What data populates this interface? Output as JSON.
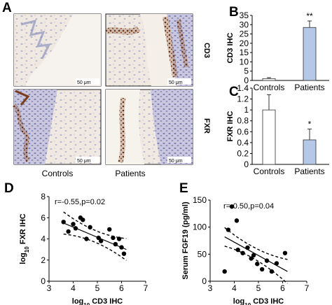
{
  "panels": {
    "A": {
      "letter": "A",
      "row_labels": [
        "CD3",
        "FXR"
      ],
      "col_labels": [
        "Controls",
        "Patients"
      ],
      "scale_bar": "50 μm"
    },
    "B": {
      "letter": "B"
    },
    "C": {
      "letter": "C"
    },
    "D": {
      "letter": "D"
    },
    "E": {
      "letter": "E"
    }
  },
  "colors": {
    "bar_controls": "#ffffff",
    "bar_patients": "#b6c8e8",
    "tissue_bg": "#f1ece6",
    "hematoxylin": "#7d86b8",
    "dab_brown": "#7a3d1e"
  },
  "chart_data": [
    {
      "id": "B",
      "type": "bar",
      "categories": [
        "Controls",
        "Patients"
      ],
      "values": [
        1.0,
        28.5
      ],
      "errors": [
        0.5,
        3.5
      ],
      "significance": [
        "",
        "**"
      ],
      "ylabel": "CD3 IHC",
      "ylim": [
        0,
        35
      ],
      "yticks": [
        0,
        5,
        10,
        15,
        20,
        25,
        30,
        35
      ]
    },
    {
      "id": "C",
      "type": "bar",
      "categories": [
        "Controls",
        "Patients"
      ],
      "values": [
        1.0,
        0.45
      ],
      "errors": [
        0.28,
        0.2
      ],
      "significance": [
        "",
        "*"
      ],
      "ylabel": "FXR IHC",
      "ylim": [
        0,
        1.4
      ],
      "yticks": [
        0,
        0.2,
        0.4,
        0.6,
        0.8,
        1,
        1.2,
        1.4
      ],
      "ytick_labels": [
        "0",
        "0.2",
        "0.4",
        "0.6",
        "0.8",
        "1",
        "1.2",
        "1.4"
      ]
    },
    {
      "id": "D",
      "type": "scatter",
      "annotation": "r=-0.55,p=0.02",
      "xlabel_parts": [
        "log",
        "10",
        " CD3 IHC"
      ],
      "ylabel_parts": [
        "log",
        "10",
        " FXR IHC"
      ],
      "xlim": [
        3,
        7
      ],
      "ylim": [
        0,
        8
      ],
      "xticks": [
        3,
        4,
        5,
        6,
        7
      ],
      "yticks": [
        0,
        2,
        4,
        6,
        8
      ],
      "x": [
        3.6,
        3.8,
        4.0,
        4.1,
        4.3,
        4.4,
        4.55,
        4.7,
        5.05,
        5.15,
        5.5,
        5.65,
        5.75,
        5.9,
        6.0,
        6.1
      ],
      "y": [
        5.6,
        4.7,
        5.4,
        5.0,
        6.0,
        5.8,
        4.0,
        5.1,
        4.1,
        3.8,
        4.9,
        4.1,
        3.5,
        4.0,
        3.2,
        2.6
      ],
      "fit": {
        "x": [
          3.6,
          6.2
        ],
        "y": [
          5.5,
          3.0
        ]
      }
    },
    {
      "id": "E",
      "type": "scatter",
      "annotation": "r=-0.50,p=0.04",
      "xlabel_parts": [
        "log",
        "10",
        " CD3 IHC"
      ],
      "ylabel": "Serum FGF19 (pg/ml)",
      "xlim": [
        3,
        7
      ],
      "ylim": [
        0,
        150
      ],
      "xticks": [
        3,
        4,
        5,
        6,
        7
      ],
      "yticks": [
        0,
        50,
        100,
        150
      ],
      "x": [
        3.6,
        3.75,
        3.9,
        4.1,
        4.15,
        4.35,
        4.55,
        4.7,
        4.8,
        4.95,
        5.15,
        5.35,
        5.55,
        5.75,
        6.1
      ],
      "y": [
        18,
        95,
        138,
        112,
        58,
        52,
        62,
        42,
        48,
        32,
        22,
        38,
        18,
        33,
        52
      ],
      "fit": {
        "x": [
          3.6,
          6.2
        ],
        "y": [
          82,
          18
        ]
      }
    }
  ]
}
